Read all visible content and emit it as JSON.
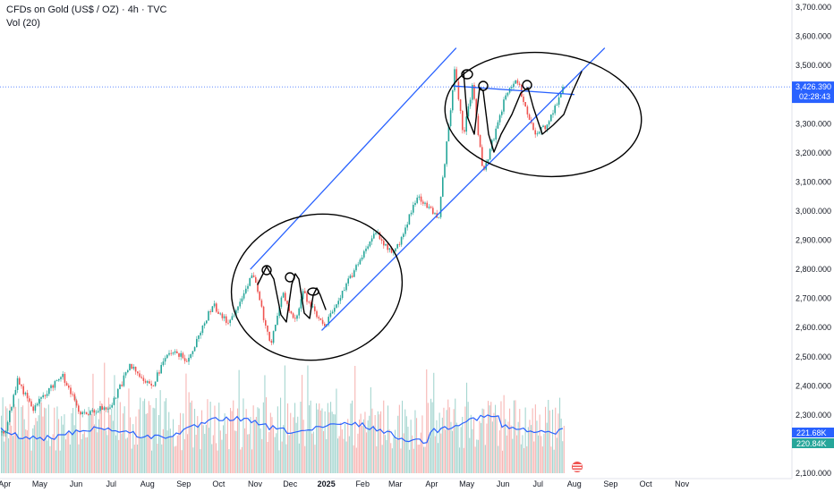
{
  "header": {
    "symbol_title": "CFDs on Gold (US$ / OZ) · 4h · TVC",
    "volume_label": "Vol (20)"
  },
  "chart_data": {
    "type": "candlestick",
    "title": "CFDs on Gold (US$ / OZ) · 4h · TVC",
    "y_axis": {
      "ticks": [
        2100,
        2200,
        2300,
        2400,
        2500,
        2600,
        2700,
        2800,
        2900,
        3000,
        3100,
        3200,
        3300,
        3400,
        3500,
        3600,
        3700
      ],
      "tick_labels": [
        "2,100.000",
        "2,200.000",
        "2,300.000",
        "2,400.000",
        "2,500.000",
        "2,600.000",
        "2,700.000",
        "2,800.000",
        "2,900.000",
        "3,000.000",
        "3,100.000",
        "3,200.000",
        "3,300.000",
        "3,400.000",
        "3,500.000",
        "3,600.000",
        "3,700.000"
      ],
      "range": [
        2060,
        3725
      ]
    },
    "x_axis": {
      "labels": [
        "Apr",
        "May",
        "Jun",
        "Jul",
        "Aug",
        "Sep",
        "Oct",
        "Nov",
        "Dec",
        "2025",
        "Feb",
        "Mar",
        "Apr",
        "May",
        "Jun",
        "Jul",
        "Aug",
        "Sep",
        "Oct",
        "Nov"
      ]
    },
    "price_path": [
      {
        "t": "2024-04-01",
        "v": 2240
      },
      {
        "t": "2024-04-12",
        "v": 2420
      },
      {
        "t": "2024-04-25",
        "v": 2320
      },
      {
        "t": "2024-05-20",
        "v": 2440
      },
      {
        "t": "2024-06-05",
        "v": 2300
      },
      {
        "t": "2024-07-01",
        "v": 2330
      },
      {
        "t": "2024-07-17",
        "v": 2470
      },
      {
        "t": "2024-08-05",
        "v": 2400
      },
      {
        "t": "2024-08-20",
        "v": 2520
      },
      {
        "t": "2024-09-05",
        "v": 2490
      },
      {
        "t": "2024-09-26",
        "v": 2680
      },
      {
        "t": "2024-10-10",
        "v": 2610
      },
      {
        "t": "2024-10-30",
        "v": 2790
      },
      {
        "t": "2024-11-14",
        "v": 2540
      },
      {
        "t": "2024-11-25",
        "v": 2720
      },
      {
        "t": "2024-12-05",
        "v": 2620
      },
      {
        "t": "2024-12-12",
        "v": 2720
      },
      {
        "t": "2024-12-30",
        "v": 2600
      },
      {
        "t": "2025-01-20",
        "v": 2760
      },
      {
        "t": "2025-02-11",
        "v": 2930
      },
      {
        "t": "2025-02-28",
        "v": 2850
      },
      {
        "t": "2025-03-20",
        "v": 3050
      },
      {
        "t": "2025-04-07",
        "v": 2980
      },
      {
        "t": "2025-04-21",
        "v": 3490
      },
      {
        "t": "2025-04-28",
        "v": 3260
      },
      {
        "t": "2025-05-06",
        "v": 3430
      },
      {
        "t": "2025-05-15",
        "v": 3130
      },
      {
        "t": "2025-06-03",
        "v": 3390
      },
      {
        "t": "2025-06-13",
        "v": 3450
      },
      {
        "t": "2025-06-27",
        "v": 3270
      },
      {
        "t": "2025-07-09",
        "v": 3290
      },
      {
        "t": "2025-07-23",
        "v": 3426.39
      }
    ],
    "volume": {
      "label": "Vol (20)",
      "ma_value_label": "221.68K",
      "last_value_label": "220.84K"
    },
    "current_price": {
      "value": 3426.39,
      "label": "3,426.390",
      "countdown": "02:28:43"
    },
    "drawings": {
      "ascending_channel": [
        {
          "from": {
            "t": "2024-10-28",
            "v": 2800
          },
          "to": {
            "t": "2025-04-22",
            "v": 3560
          }
        },
        {
          "from": {
            "t": "2024-12-28",
            "v": 2590
          },
          "to": {
            "t": "2025-08-27",
            "v": 3560
          }
        }
      ],
      "resistance_line": {
        "from": {
          "t": "2025-04-18",
          "v": 3430
        },
        "to": {
          "t": "2025-08-01",
          "v": 3400
        }
      }
    },
    "grid": false,
    "colors": {
      "up_candle": "#26a69a",
      "down_candle": "#ef5350",
      "volume_ma": "#2962ff",
      "channel_lines": "#2962ff",
      "price_line": "#2962ff",
      "price_tag": "#2962ff",
      "volume_up": "#a5d6d0",
      "volume_down": "#f7b6b4",
      "drawing_ink": "#000000"
    }
  }
}
